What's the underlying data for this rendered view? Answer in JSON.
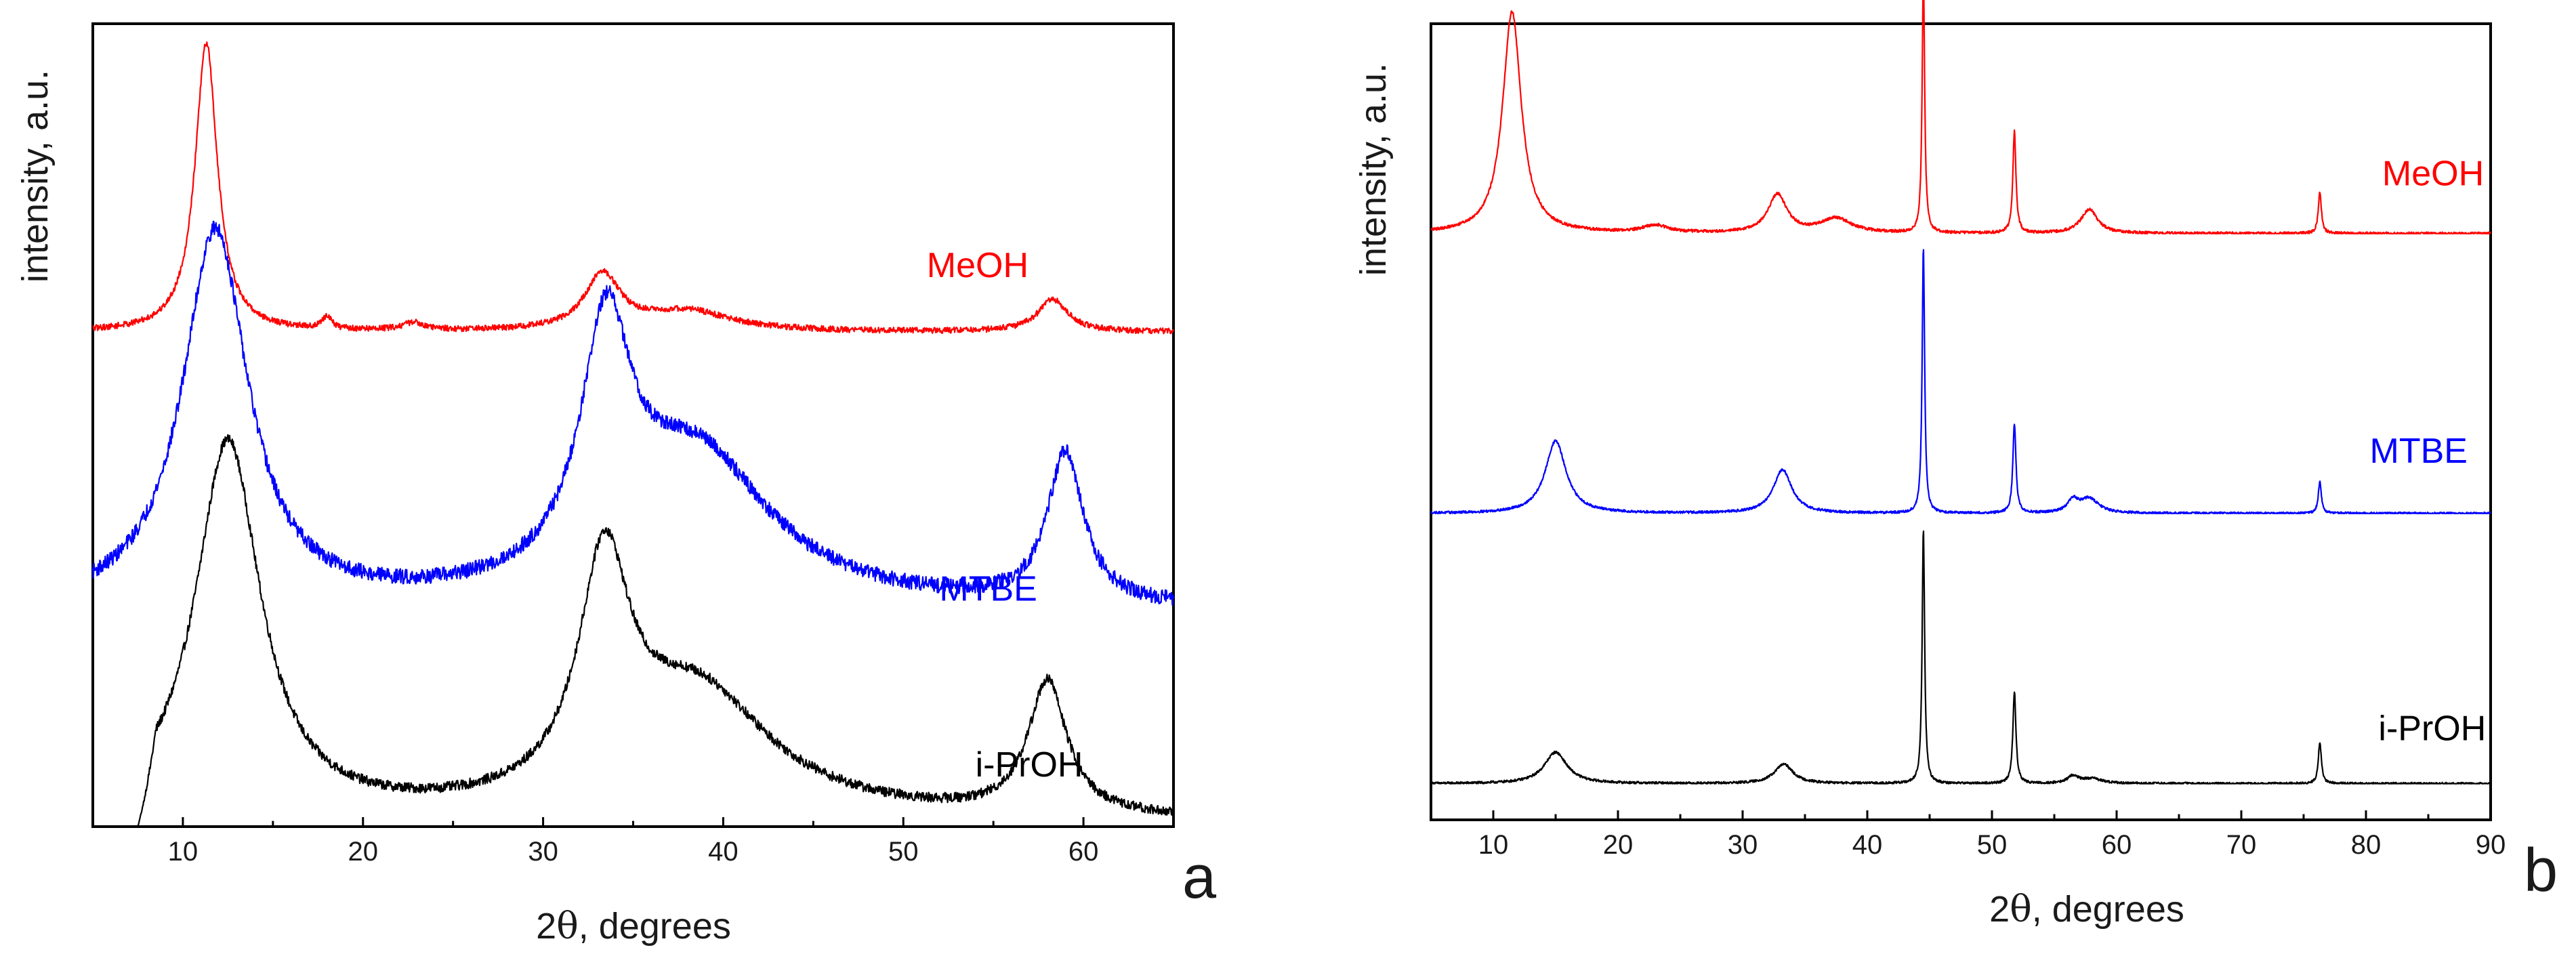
{
  "chart_data": [
    {
      "type": "line",
      "panel": "a",
      "panel_label": "a",
      "xlabel_prefix": "2",
      "xlabel_symbol": "θ",
      "xlabel_suffix": ", degrees",
      "ylabel": "intensity, a.u.",
      "xlim": [
        5,
        65
      ],
      "ylim": [
        0,
        3.2
      ],
      "xticks": [
        10,
        20,
        30,
        40,
        50,
        60
      ],
      "xtick_labels": [
        "10",
        "20",
        "30",
        "40",
        "50",
        "60"
      ],
      "grid": false,
      "legend": "inline labels at right",
      "series": [
        {
          "name": "i-PrOH",
          "color": "#000000",
          "offset": 0,
          "baseline": 0.02,
          "noise": 0.02,
          "label_x": 54,
          "label_y": 0.2,
          "start_ramp": [
            7.5,
            8.5
          ],
          "peaks": [
            {
              "center": 12.5,
              "height": 1.5,
              "width": 2.2
            },
            {
              "center": 33.4,
              "height": 0.9,
              "width": 1.7
            },
            {
              "center": 38.5,
              "height": 0.5,
              "width": 5.0
            },
            {
              "center": 58.0,
              "height": 0.53,
              "width": 1.3
            }
          ]
        },
        {
          "name": "MTBE",
          "color": "#0000ff",
          "offset": 0.76,
          "baseline": 0.1,
          "noise": 0.03,
          "label_x": 52,
          "label_y": 0.9,
          "peaks": [
            {
              "center": 11.8,
              "height": 1.5,
              "width": 2.2
            },
            {
              "center": 33.5,
              "height": 0.95,
              "width": 1.7
            },
            {
              "center": 38.5,
              "height": 0.6,
              "width": 5.0
            },
            {
              "center": 59.0,
              "height": 0.6,
              "width": 1.2
            }
          ]
        },
        {
          "name": "MeOH",
          "color": "#ff0000",
          "offset": 1.9,
          "baseline": 0.07,
          "noise": 0.012,
          "label_x": 51.3,
          "label_y": 2.19,
          "peaks": [
            {
              "center": 11.3,
              "height": 1.15,
              "width": 0.75
            },
            {
              "center": 18.0,
              "height": 0.05,
              "width": 0.3
            },
            {
              "center": 22.8,
              "height": 0.03,
              "width": 0.8
            },
            {
              "center": 33.3,
              "height": 0.22,
              "width": 1.2
            },
            {
              "center": 38.0,
              "height": 0.08,
              "width": 3.0
            },
            {
              "center": 58.3,
              "height": 0.13,
              "width": 1.0
            }
          ]
        }
      ]
    },
    {
      "type": "line",
      "panel": "b",
      "panel_label": "b",
      "xlabel_prefix": "2",
      "xlabel_symbol": "θ",
      "xlabel_suffix": ", degrees",
      "ylabel": "intensity, a.u.",
      "xlim": [
        5,
        90
      ],
      "ylim": [
        0,
        3.3
      ],
      "xticks": [
        10,
        20,
        30,
        40,
        50,
        60,
        70,
        80,
        90
      ],
      "xtick_labels": [
        "10",
        "20",
        "30",
        "40",
        "50",
        "60",
        "70",
        "80",
        "90"
      ],
      "grid": false,
      "legend": "inline labels at right",
      "series": [
        {
          "name": "i-PrOH",
          "color": "#000000",
          "offset": 0.15,
          "baseline": 0,
          "noise": 0.005,
          "label_x": 81,
          "label_y": 0.33,
          "peaks": [
            {
              "center": 15.0,
              "height": 0.13,
              "width": 1.1
            },
            {
              "center": 33.3,
              "height": 0.08,
              "width": 0.9
            },
            {
              "center": 44.5,
              "height": 1.05,
              "width": 0.12
            },
            {
              "center": 51.8,
              "height": 0.38,
              "width": 0.15
            },
            {
              "center": 56.5,
              "height": 0.03,
              "width": 0.5
            },
            {
              "center": 58.0,
              "height": 0.02,
              "width": 1.0
            },
            {
              "center": 76.3,
              "height": 0.17,
              "width": 0.15
            }
          ]
        },
        {
          "name": "MTBE",
          "color": "#0000ff",
          "offset": 1.27,
          "baseline": 0,
          "noise": 0.005,
          "label_x": 80.3,
          "label_y": 1.48,
          "peaks": [
            {
              "center": 15.0,
              "height": 0.3,
              "width": 1.0
            },
            {
              "center": 33.2,
              "height": 0.18,
              "width": 0.9
            },
            {
              "center": 44.5,
              "height": 1.1,
              "width": 0.12
            },
            {
              "center": 51.8,
              "height": 0.37,
              "width": 0.15
            },
            {
              "center": 56.5,
              "height": 0.05,
              "width": 0.5
            },
            {
              "center": 57.8,
              "height": 0.06,
              "width": 0.9
            },
            {
              "center": 76.3,
              "height": 0.13,
              "width": 0.15
            }
          ]
        },
        {
          "name": "MeOH",
          "color": "#ff0000",
          "offset": 2.43,
          "baseline": 0,
          "noise": 0.006,
          "label_x": 81.3,
          "label_y": 2.63,
          "peaks": [
            {
              "center": 11.5,
              "height": 0.92,
              "width": 0.9
            },
            {
              "center": 23.0,
              "height": 0.03,
              "width": 1.2
            },
            {
              "center": 32.8,
              "height": 0.16,
              "width": 0.9
            },
            {
              "center": 37.5,
              "height": 0.06,
              "width": 1.5
            },
            {
              "center": 44.5,
              "height": 1.08,
              "width": 0.12
            },
            {
              "center": 51.8,
              "height": 0.42,
              "width": 0.15
            },
            {
              "center": 57.8,
              "height": 0.1,
              "width": 0.8
            },
            {
              "center": 76.3,
              "height": 0.17,
              "width": 0.15
            }
          ]
        }
      ]
    }
  ]
}
